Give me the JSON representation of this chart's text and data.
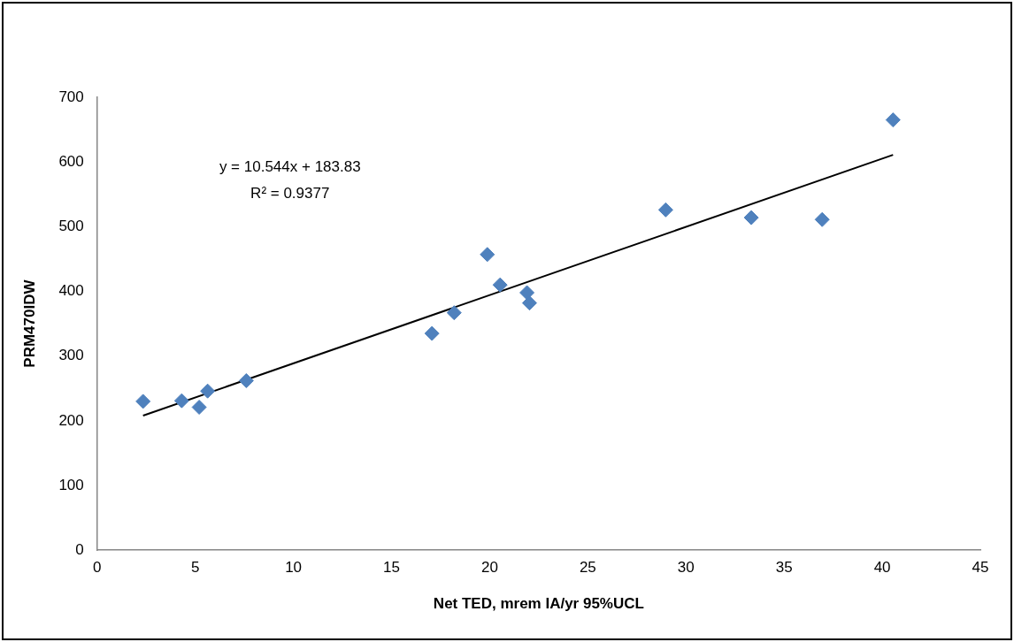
{
  "chart_data": {
    "type": "scatter",
    "xlabel": "Net TED, mrem IA/yr 95%UCL",
    "ylabel": "PRM470IDW",
    "xlim": [
      0,
      45
    ],
    "xticks": [
      0,
      5,
      10,
      15,
      20,
      25,
      30,
      35,
      40,
      45
    ],
    "ylim": [
      0,
      700
    ],
    "yticks": [
      0,
      100,
      200,
      300,
      400,
      500,
      600,
      700
    ],
    "grid": false,
    "legend": false,
    "marker": "diamond",
    "series": [
      {
        "color": "#4f81bd",
        "x": [
          2.34,
          4.31,
          5.2,
          5.63,
          7.6,
          17.06,
          18.19,
          19.88,
          20.53,
          21.9,
          22.03,
          28.97,
          33.33,
          36.94,
          40.55
        ],
        "values": [
          230,
          231,
          221,
          246,
          262,
          335,
          367,
          457,
          410,
          398,
          382,
          526,
          514,
          511,
          665
        ]
      },
      {
        "type": "line",
        "color": "#000000",
        "marker": "none",
        "x": [
          2.34,
          40.55
        ],
        "values": [
          208,
          611
        ]
      }
    ],
    "annotations": [
      "y = 10.544x + 183.83",
      "R² = 0.9377"
    ]
  }
}
